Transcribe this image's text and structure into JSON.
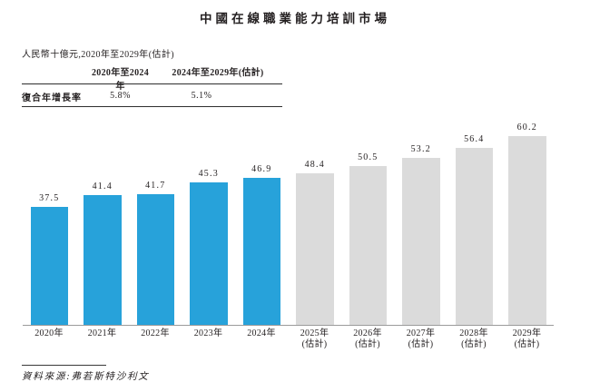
{
  "page": {
    "title": "中國在線職業能力培訓市場",
    "subtitle": "人民幣十億元,2020年至2029年(估計)",
    "source": "資料來源:弗若斯特沙利文"
  },
  "cagr_table": {
    "col1_header": "2020年至2024年",
    "col2_header": "2024年至2029年(估計)",
    "row_label": "復合年增長率",
    "col1_value": "5.8%",
    "col2_value": "5.1%"
  },
  "chart_data": {
    "type": "bar",
    "title": "中國在線職業能力培訓市場",
    "unit_label": "人民幣十億元,2020年至2029年(估計)",
    "categories": [
      "2020年",
      "2021年",
      "2022年",
      "2023年",
      "2024年",
      "2025年(估計)",
      "2026年(估計)",
      "2027年(估計)",
      "2028年(估計)",
      "2029年(估計)"
    ],
    "values": [
      37.5,
      41.4,
      41.7,
      45.3,
      46.9,
      48.4,
      50.5,
      53.2,
      56.4,
      60.2
    ],
    "bars": [
      {
        "label": "2020年",
        "sublabel": "",
        "value": 37.5,
        "type": "actual"
      },
      {
        "label": "2021年",
        "sublabel": "",
        "value": 41.4,
        "type": "actual"
      },
      {
        "label": "2022年",
        "sublabel": "",
        "value": 41.7,
        "type": "actual"
      },
      {
        "label": "2023年",
        "sublabel": "",
        "value": 45.3,
        "type": "actual"
      },
      {
        "label": "2024年",
        "sublabel": "",
        "value": 46.9,
        "type": "actual"
      },
      {
        "label": "2025年",
        "sublabel": "(估計)",
        "value": 48.4,
        "type": "estimate"
      },
      {
        "label": "2026年",
        "sublabel": "(估計)",
        "value": 50.5,
        "type": "estimate"
      },
      {
        "label": "2027年",
        "sublabel": "(估計)",
        "value": 53.2,
        "type": "estimate"
      },
      {
        "label": "2028年",
        "sublabel": "(估計)",
        "value": 56.4,
        "type": "estimate"
      },
      {
        "label": "2029年",
        "sublabel": "(估計)",
        "value": 60.2,
        "type": "estimate"
      }
    ],
    "colors": {
      "actual": "#27a2da",
      "estimate": "#dbdbdb"
    },
    "ylim": [
      0,
      65
    ],
    "grid": false,
    "value_labels": true,
    "legend": "none",
    "source": "資料來源:弗若斯特沙利文"
  }
}
